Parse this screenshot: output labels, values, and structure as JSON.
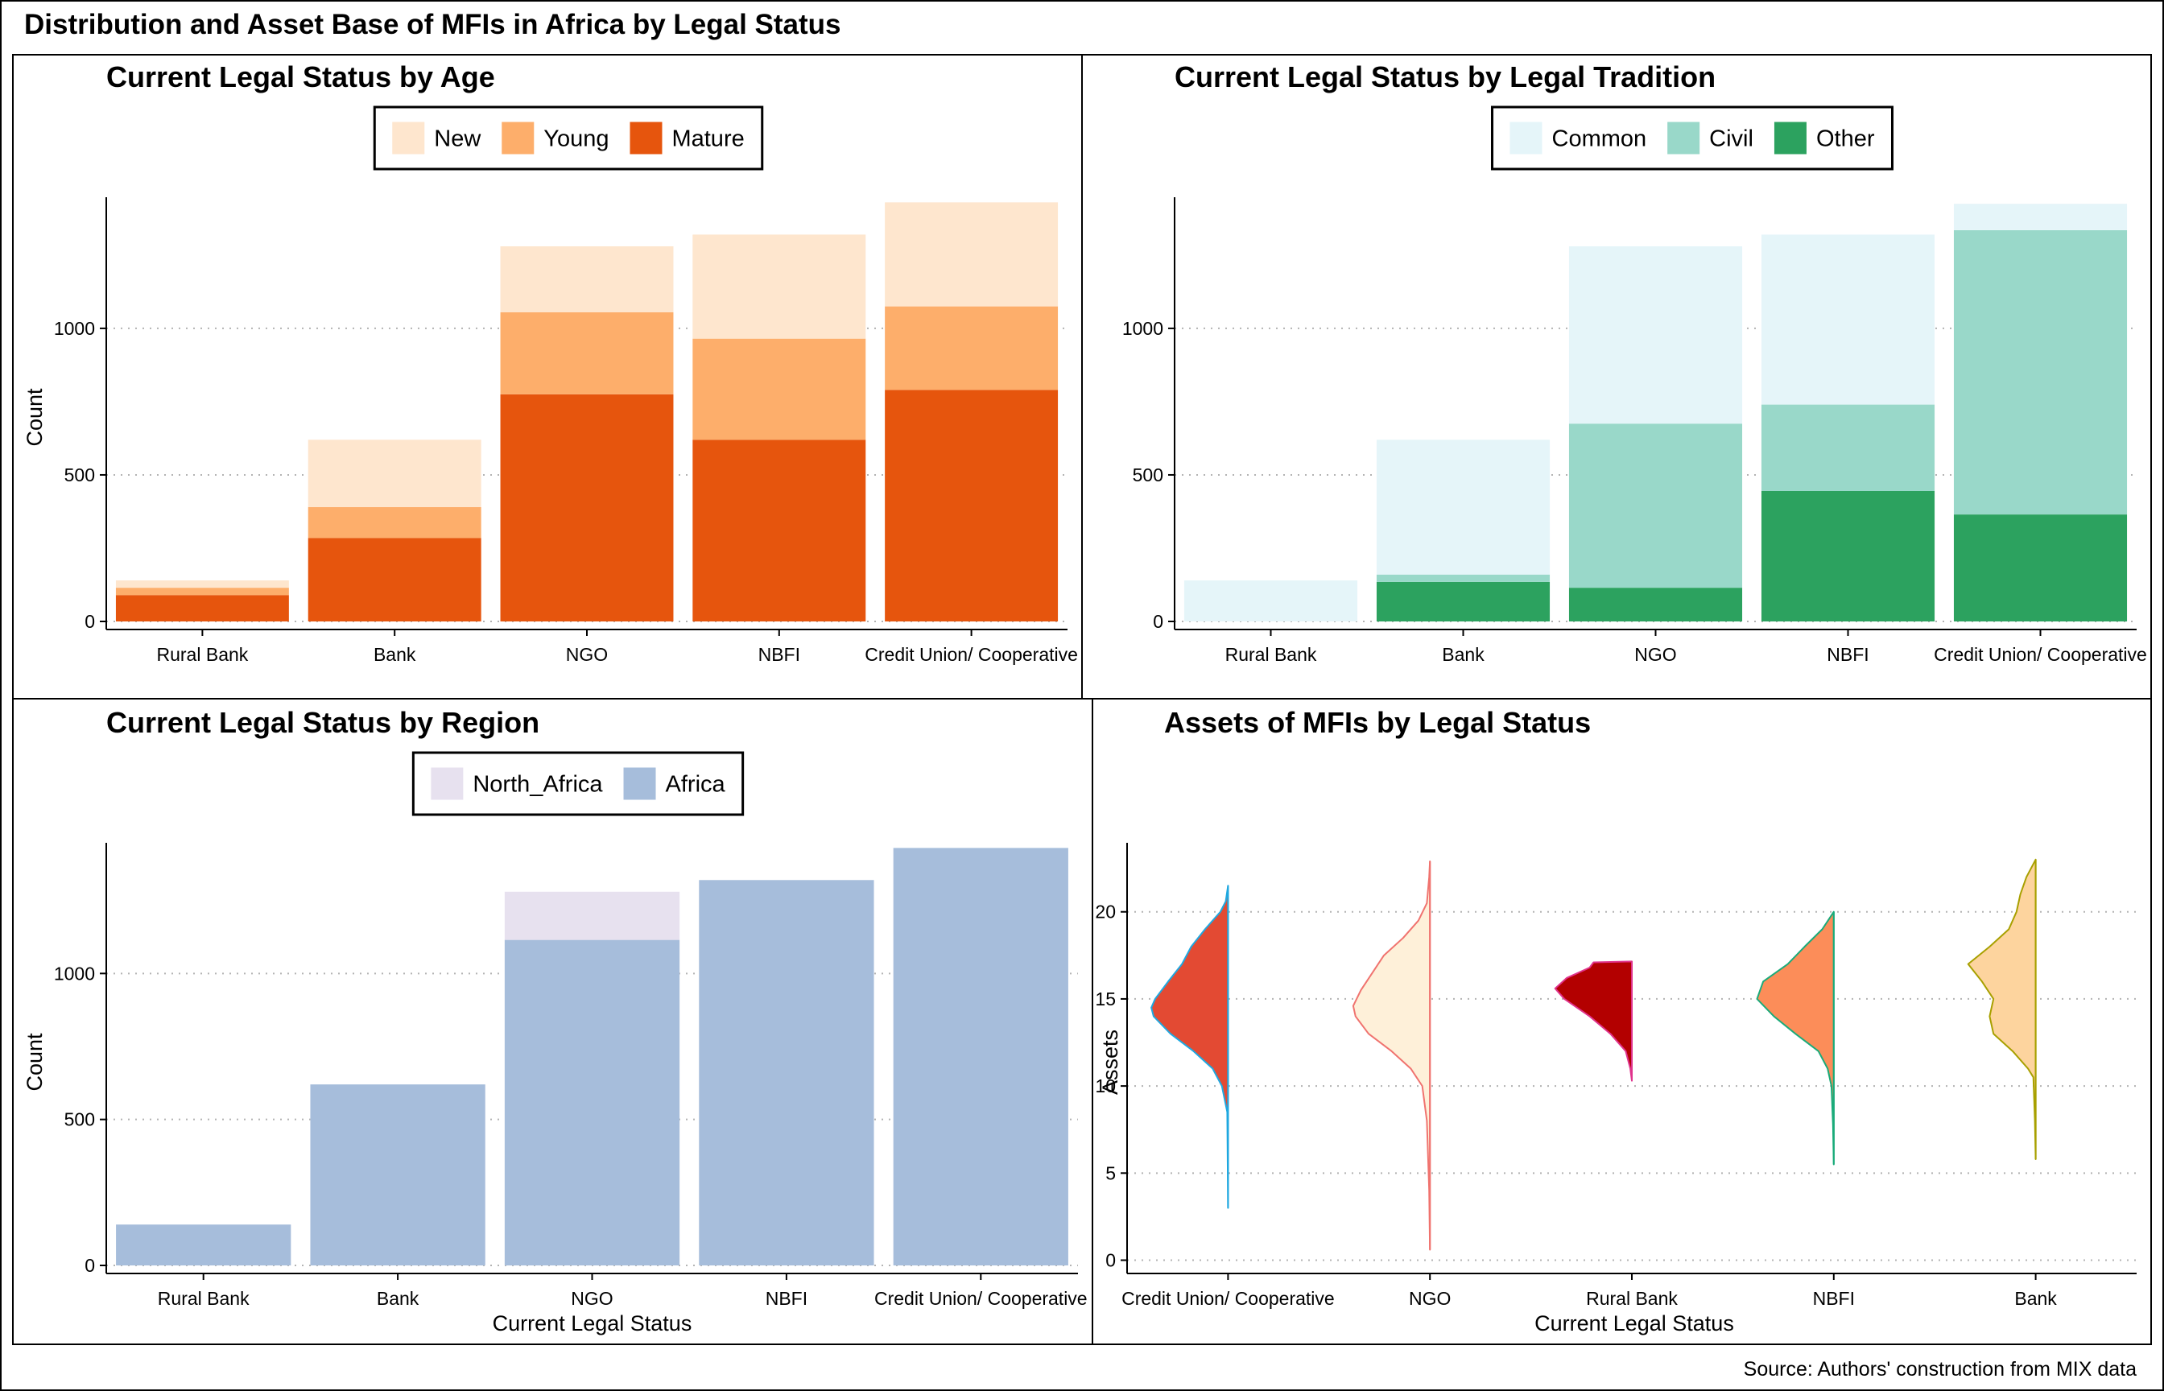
{
  "figure": {
    "title": "Distribution and Asset Base of MFIs in Africa by Legal Status",
    "source": "Source: Authors' construction from MIX data"
  },
  "chart_data": [
    {
      "type": "bar",
      "stacked": true,
      "title": "Current Legal Status by Age",
      "xlabel": "",
      "ylabel": "Count",
      "ylim": [
        0,
        1420
      ],
      "yticks": [
        0,
        500,
        1000
      ],
      "grid": "horizontal dotted",
      "legend_position": "top",
      "categories": [
        "Rural Bank",
        "Bank",
        "NGO",
        "NBFI",
        "Credit Union/ Cooperative"
      ],
      "series": [
        {
          "name": "Mature",
          "color": "#e6550d",
          "values": [
            90,
            285,
            775,
            620,
            790
          ]
        },
        {
          "name": "Young",
          "color": "#fdae6b",
          "values": [
            25,
            105,
            280,
            345,
            285
          ]
        },
        {
          "name": "New",
          "color": "#fee6ce",
          "values": [
            25,
            230,
            225,
            355,
            355
          ]
        }
      ],
      "legend_order": [
        "New",
        "Young",
        "Mature"
      ]
    },
    {
      "type": "bar",
      "stacked": true,
      "title": "Current Legal Status by Legal Tradition",
      "xlabel": "",
      "ylabel": "",
      "ylim": [
        0,
        1420
      ],
      "yticks": [
        0,
        500,
        1000
      ],
      "grid": "horizontal dotted",
      "legend_position": "top",
      "categories": [
        "Rural Bank",
        "Bank",
        "NGO",
        "NBFI",
        "Credit Union/ Cooperative"
      ],
      "series": [
        {
          "name": "Other",
          "color": "#2ca25f",
          "values": [
            0,
            135,
            115,
            445,
            365
          ]
        },
        {
          "name": "Civil",
          "color": "#99d8c9",
          "values": [
            0,
            25,
            560,
            295,
            970
          ]
        },
        {
          "name": "Common",
          "color": "#e5f5f9",
          "values": [
            140,
            460,
            605,
            580,
            90
          ]
        }
      ],
      "legend_order": [
        "Common",
        "Civil",
        "Other"
      ]
    },
    {
      "type": "bar",
      "stacked": true,
      "title": "Current Legal Status by Region",
      "xlabel": "Current Legal Status",
      "ylabel": "Count",
      "ylim": [
        0,
        1420
      ],
      "yticks": [
        0,
        500,
        1000
      ],
      "grid": "horizontal dotted",
      "legend_position": "top",
      "categories": [
        "Rural Bank",
        "Bank",
        "NGO",
        "NBFI",
        "Credit Union/ Cooperative"
      ],
      "series": [
        {
          "name": "Africa",
          "color": "#a6bddb",
          "values": [
            140,
            620,
            1115,
            1320,
            1430
          ]
        },
        {
          "name": "North_Africa",
          "color": "#e7e1ef",
          "values": [
            0,
            0,
            165,
            0,
            0
          ]
        }
      ],
      "legend_order": [
        "North_Africa",
        "Africa"
      ]
    },
    {
      "type": "violin",
      "title": "Assets of MFIs by Legal Status",
      "xlabel": "Current Legal Status",
      "ylabel": "Assets",
      "ylim": [
        -0.3,
        23.5
      ],
      "yticks": [
        0,
        5,
        10,
        15,
        20
      ],
      "grid": "horizontal dotted",
      "legend_position": "none",
      "categories": [
        "Credit Union/ Cooperative",
        "NGO",
        "Rural Bank",
        "NBFI",
        "Bank"
      ],
      "series": [
        {
          "name": "Credit Union/ Cooperative",
          "fill": "#e34a33",
          "line": "#1fa8e0",
          "side": "left",
          "profile": [
            [
              3,
              0
            ],
            [
              8.5,
              0.01
            ],
            [
              10,
              0.08
            ],
            [
              11,
              0.2
            ],
            [
              12,
              0.45
            ],
            [
              13,
              0.75
            ],
            [
              14,
              0.97
            ],
            [
              14.5,
              1.0
            ],
            [
              15,
              0.95
            ],
            [
              16,
              0.78
            ],
            [
              17,
              0.6
            ],
            [
              18,
              0.48
            ],
            [
              19,
              0.3
            ],
            [
              20,
              0.1
            ],
            [
              20.6,
              0.03
            ],
            [
              21.5,
              0
            ]
          ]
        },
        {
          "name": "NGO",
          "fill": "#fef0d9",
          "line": "#f0736f",
          "side": "left",
          "profile": [
            [
              0.6,
              0
            ],
            [
              4,
              0.01
            ],
            [
              8,
              0.04
            ],
            [
              10,
              0.1
            ],
            [
              11,
              0.25
            ],
            [
              12,
              0.5
            ],
            [
              13,
              0.8
            ],
            [
              14,
              0.97
            ],
            [
              14.6,
              1.0
            ],
            [
              15.5,
              0.9
            ],
            [
              16.5,
              0.75
            ],
            [
              17.5,
              0.6
            ],
            [
              18.5,
              0.35
            ],
            [
              19.5,
              0.15
            ],
            [
              20.5,
              0.04
            ],
            [
              22,
              0.01
            ],
            [
              22.9,
              0
            ]
          ]
        },
        {
          "name": "Rural Bank",
          "fill": "#b30000",
          "line": "#e0338c",
          "side": "left",
          "profile": [
            [
              10.3,
              0
            ],
            [
              11,
              0.02
            ],
            [
              12,
              0.08
            ],
            [
              13,
              0.28
            ],
            [
              14,
              0.55
            ],
            [
              15,
              0.88
            ],
            [
              15.6,
              1.0
            ],
            [
              16.2,
              0.85
            ],
            [
              16.8,
              0.55
            ],
            [
              17.1,
              0.5
            ],
            [
              17.15,
              0
            ]
          ]
        },
        {
          "name": "NBFI",
          "fill": "#fc8d59",
          "line": "#1aab7a",
          "side": "left",
          "profile": [
            [
              5.5,
              0
            ],
            [
              7.8,
              0.01
            ],
            [
              10,
              0.03
            ],
            [
              11,
              0.08
            ],
            [
              12,
              0.2
            ],
            [
              13,
              0.5
            ],
            [
              14,
              0.78
            ],
            [
              15,
              1.0
            ],
            [
              16,
              0.92
            ],
            [
              17,
              0.6
            ],
            [
              18,
              0.38
            ],
            [
              19,
              0.15
            ],
            [
              20,
              0
            ]
          ]
        },
        {
          "name": "Bank",
          "fill": "#fdd49e",
          "line": "#a8a000",
          "side": "left",
          "profile": [
            [
              5.8,
              0
            ],
            [
              8,
              0.01
            ],
            [
              10.5,
              0.03
            ],
            [
              11,
              0.1
            ],
            [
              12,
              0.3
            ],
            [
              13,
              0.55
            ],
            [
              14,
              0.6
            ],
            [
              15,
              0.55
            ],
            [
              16,
              0.7
            ],
            [
              17,
              0.88
            ],
            [
              18,
              0.6
            ],
            [
              19,
              0.35
            ],
            [
              20,
              0.25
            ],
            [
              21,
              0.2
            ],
            [
              22,
              0.12
            ],
            [
              23,
              0
            ]
          ]
        }
      ]
    }
  ]
}
